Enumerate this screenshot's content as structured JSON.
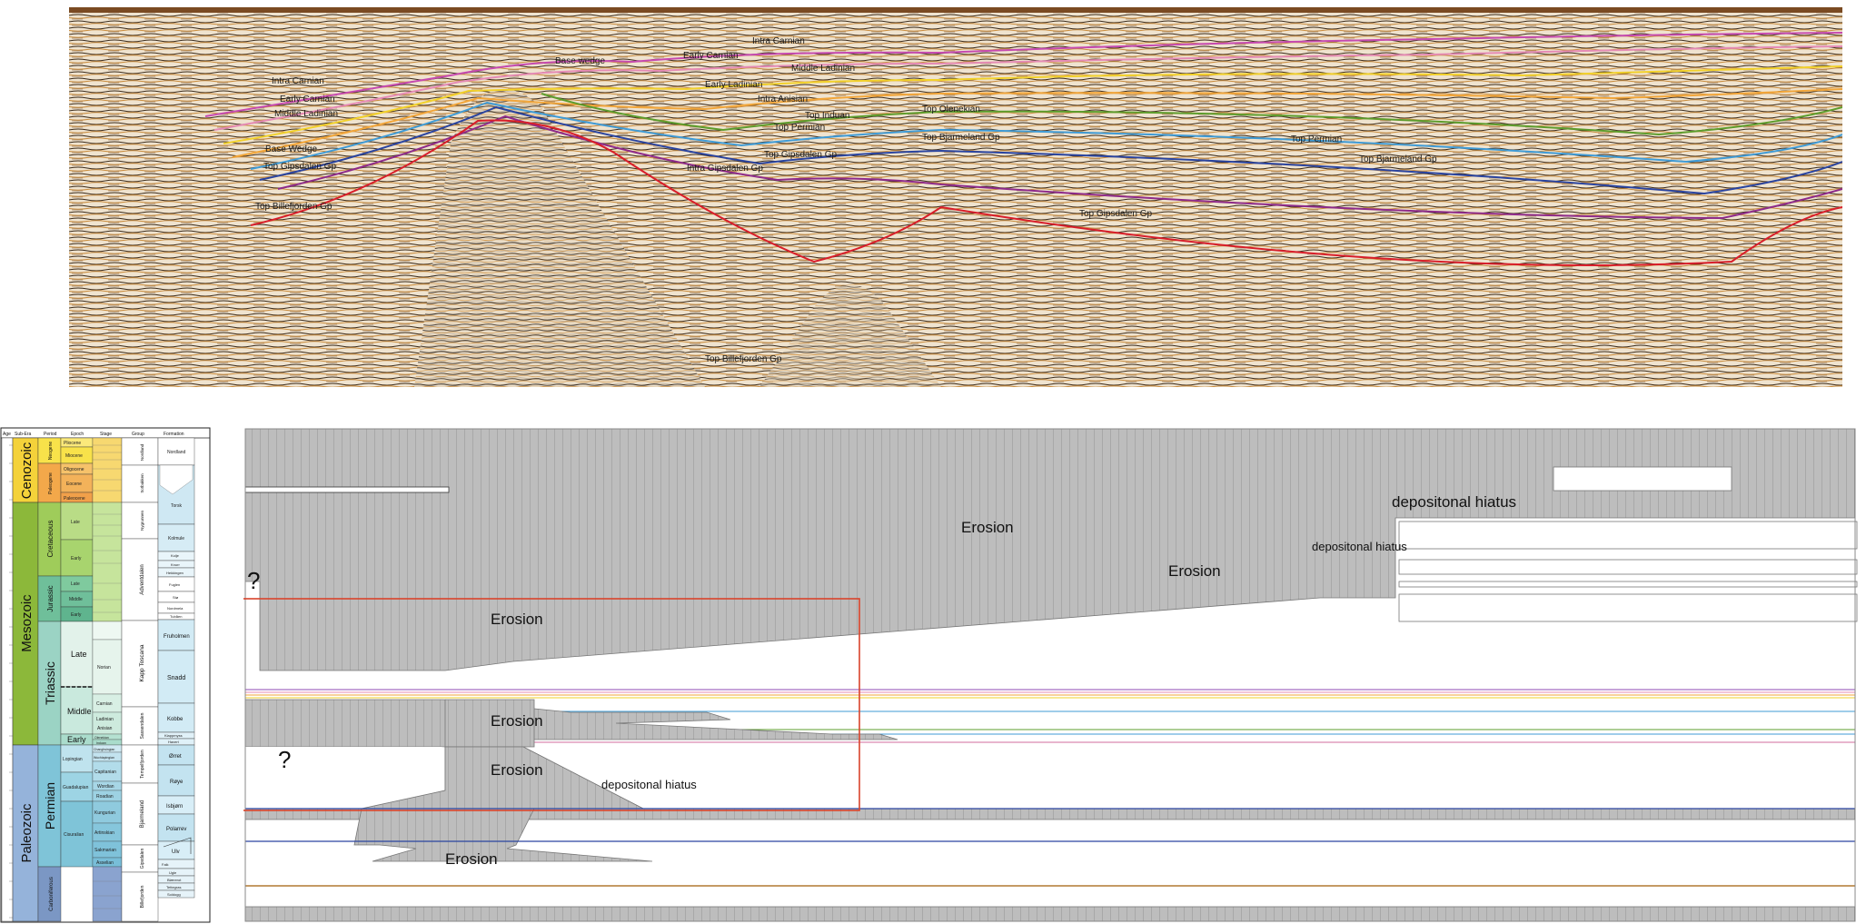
{
  "seismic": {
    "labels": {
      "intra_carnian_top": "Intra Carnian",
      "early_carnian_top": "Early Carnian",
      "base_wedge_top": "Base wedge",
      "middle_ladinian_top": "Middle Ladinian",
      "early_ladinian_mid": "Early Ladinian",
      "intra_anisian_mid": "Intra Anisian",
      "top_induan_mid": "Top Induan",
      "top_permian_mid": "Top Permian",
      "top_gipsdalen_mid": "Top Gipsdalen Gp",
      "intra_gipsdalen_mid": "Intra Gipsdalen Gp",
      "top_billefjorden_bottom": "Top Billefjorden Gp",
      "intra_carnian_left": "Intra Carnian",
      "early_carnian_left": "Early Carnian",
      "middle_ladinian_left": "Middle Ladinian",
      "base_wedge_left": "Base Wedge",
      "top_gipsdalen_left": "Top Gipsdalen Gp",
      "top_billefjorden_left": "Top Billefjorden Gp",
      "top_olenekian_right": "Top Olenekian",
      "top_bjarmeland_right": "Top Bjarmeland Gp",
      "top_permian_right": "Top Permian",
      "top_bjarmeland_far": "Top Bjarmeland Gp",
      "top_gipsdalen_right": "Top Gipsdalen Gp"
    }
  },
  "strat_column": {
    "headers": [
      "Age",
      "Sub-Era",
      "Period",
      "Epoch",
      "Stage",
      "Group",
      "Formation"
    ],
    "eras": [
      "Cenozoic",
      "Mesozoic",
      "Paleozoic"
    ],
    "periods": [
      "Neogene",
      "Paleogene",
      "Cretaceous",
      "Jurassic",
      "Triassic",
      "Permian",
      "Carboniferous"
    ],
    "epochs": [
      "Pliocene",
      "Miocene",
      "Oligocene",
      "Eocene",
      "Paleocene",
      "Late",
      "Early",
      "Late",
      "Middle",
      "Early",
      "Late",
      "Middle",
      "Early",
      "Lopingian",
      "Guadalupian",
      "Cisuralian"
    ],
    "stages": [
      "Norian",
      "Carnian",
      "Ladinian",
      "Anisian",
      "Olenekian",
      "Induan",
      "Changhsingian",
      "Wuchiapingian",
      "Capitanian",
      "Wordian",
      "Roadian",
      "Kungurian",
      "Artinskian",
      "Sakmarian",
      "Asselian"
    ],
    "groups": [
      "Nordland",
      "Sotbakken",
      "Nygrunnen",
      "Adventdalen",
      "Kapp Toscana",
      "Sassendalen",
      "Tempelfjorden",
      "Bjarmeland",
      "Gipsdalen",
      "Billefjorden"
    ],
    "formations": [
      "Nordland",
      "Torsk",
      "Kolmule",
      "Kolje",
      "Knurr",
      "Hekkingen",
      "Fuglen",
      "Stø",
      "Nordmela",
      "Tubåen",
      "Fruholmen",
      "Snadd",
      "Kobbe",
      "Klappmyss",
      "Havert",
      "Ørret",
      "Røye",
      "Isbjørn",
      "Polarrev",
      "Ulv",
      "Falk",
      "Ugle",
      "Blærerot",
      "Tettegras",
      "Soldogg"
    ]
  },
  "wheeler": {
    "erosion_labels": [
      "Erosion",
      "Erosion",
      "Erosion",
      "Erosion",
      "Erosion",
      "Erosion"
    ],
    "hiatus_labels": [
      "depositonal hiatus",
      "depositonal hiatus",
      "depositonal hiatus"
    ],
    "question_marks": [
      "?",
      "?"
    ]
  },
  "colors": {
    "erosion_fill": "#bdbdbd",
    "hatch_line": "#8a8a8a",
    "highlight_box": "#d9432b",
    "cenozoic": "#f4d23a",
    "mesozoic": "#8cb83a",
    "paleozoic": "#95b3da",
    "triassic": "#9bd3c4",
    "permian": "#7fc4d8"
  }
}
